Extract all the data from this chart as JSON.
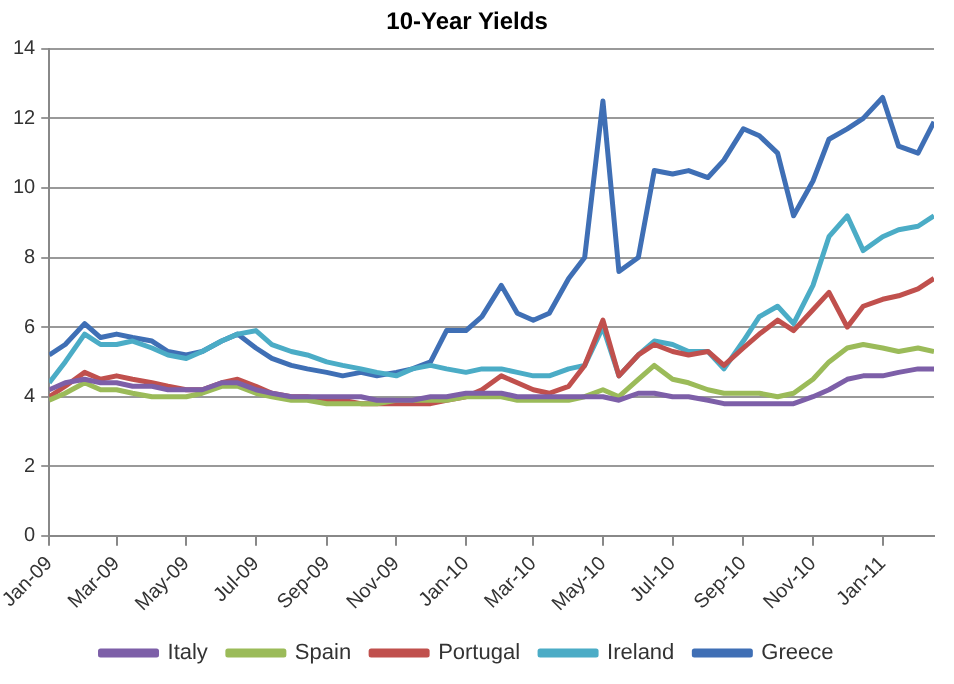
{
  "chart_data": {
    "type": "line",
    "title": "10-Year Yields",
    "x": [
      "2009-01-01",
      "2009-01-15",
      "2009-02-01",
      "2009-02-15",
      "2009-03-01",
      "2009-03-15",
      "2009-04-01",
      "2009-04-15",
      "2009-05-01",
      "2009-05-15",
      "2009-06-01",
      "2009-06-15",
      "2009-07-01",
      "2009-07-15",
      "2009-08-01",
      "2009-08-15",
      "2009-09-01",
      "2009-09-15",
      "2009-10-01",
      "2009-10-15",
      "2009-11-01",
      "2009-11-15",
      "2009-12-01",
      "2009-12-15",
      "2010-01-01",
      "2010-01-15",
      "2010-02-01",
      "2010-02-15",
      "2010-03-01",
      "2010-03-15",
      "2010-04-01",
      "2010-04-15",
      "2010-05-01",
      "2010-05-15",
      "2010-06-01",
      "2010-06-15",
      "2010-07-01",
      "2010-07-15",
      "2010-08-01",
      "2010-08-15",
      "2010-09-01",
      "2010-09-15",
      "2010-10-01",
      "2010-10-15",
      "2010-11-01",
      "2010-11-15",
      "2010-12-01",
      "2010-12-15",
      "2011-01-01",
      "2011-01-15",
      "2011-02-01",
      "2011-02-15"
    ],
    "series": [
      {
        "name": "Italy",
        "color": "#7d5fa8",
        "values": [
          4.2,
          4.4,
          4.5,
          4.4,
          4.4,
          4.3,
          4.3,
          4.2,
          4.2,
          4.2,
          4.4,
          4.4,
          4.2,
          4.1,
          4.0,
          4.0,
          4.0,
          4.0,
          4.0,
          3.9,
          3.9,
          3.9,
          4.0,
          4.0,
          4.1,
          4.1,
          4.1,
          4.0,
          4.0,
          4.0,
          4.0,
          4.0,
          4.0,
          3.9,
          4.1,
          4.1,
          4.0,
          4.0,
          3.9,
          3.8,
          3.8,
          3.8,
          3.8,
          3.8,
          4.0,
          4.2,
          4.5,
          4.6,
          4.6,
          4.7,
          4.8,
          4.8
        ]
      },
      {
        "name": "Spain",
        "color": "#9bbb59",
        "values": [
          3.9,
          4.1,
          4.4,
          4.2,
          4.2,
          4.1,
          4.0,
          4.0,
          4.0,
          4.1,
          4.3,
          4.3,
          4.1,
          4.0,
          3.9,
          3.9,
          3.8,
          3.8,
          3.8,
          3.8,
          3.9,
          3.9,
          3.9,
          3.9,
          4.0,
          4.0,
          4.0,
          3.9,
          3.9,
          3.9,
          3.9,
          4.0,
          4.2,
          4.0,
          4.5,
          4.9,
          4.5,
          4.4,
          4.2,
          4.1,
          4.1,
          4.1,
          4.0,
          4.1,
          4.5,
          5.0,
          5.4,
          5.5,
          5.4,
          5.3,
          5.4,
          5.3
        ]
      },
      {
        "name": "Portugal",
        "color": "#c0504d",
        "values": [
          4.0,
          4.3,
          4.7,
          4.5,
          4.6,
          4.5,
          4.4,
          4.3,
          4.2,
          4.2,
          4.4,
          4.5,
          4.3,
          4.1,
          4.0,
          4.0,
          3.9,
          3.9,
          3.8,
          3.8,
          3.8,
          3.8,
          3.8,
          3.9,
          4.0,
          4.2,
          4.6,
          4.4,
          4.2,
          4.1,
          4.3,
          4.9,
          6.2,
          4.6,
          5.2,
          5.5,
          5.3,
          5.2,
          5.3,
          4.9,
          5.4,
          5.8,
          6.2,
          5.9,
          6.5,
          7.0,
          6.0,
          6.6,
          6.8,
          6.9,
          7.1,
          7.4
        ]
      },
      {
        "name": "Ireland",
        "color": "#4bacc6",
        "values": [
          4.4,
          5.0,
          5.8,
          5.5,
          5.5,
          5.6,
          5.4,
          5.2,
          5.1,
          5.3,
          5.6,
          5.8,
          5.9,
          5.5,
          5.3,
          5.2,
          5.0,
          4.9,
          4.8,
          4.7,
          4.6,
          4.8,
          4.9,
          4.8,
          4.7,
          4.8,
          4.8,
          4.7,
          4.6,
          4.6,
          4.8,
          4.9,
          6.0,
          4.6,
          5.2,
          5.6,
          5.5,
          5.3,
          5.3,
          4.8,
          5.6,
          6.3,
          6.6,
          6.1,
          7.2,
          8.6,
          9.2,
          8.2,
          8.6,
          8.8,
          8.9,
          9.2
        ]
      },
      {
        "name": "Greece",
        "color": "#3f6fb5",
        "values": [
          5.2,
          5.5,
          6.1,
          5.7,
          5.8,
          5.7,
          5.6,
          5.3,
          5.2,
          5.3,
          5.6,
          5.8,
          5.4,
          5.1,
          4.9,
          4.8,
          4.7,
          4.6,
          4.7,
          4.6,
          4.7,
          4.8,
          5.0,
          5.9,
          5.9,
          6.3,
          7.2,
          6.4,
          6.2,
          6.4,
          7.4,
          8.0,
          12.5,
          7.6,
          8.0,
          10.5,
          10.4,
          10.5,
          10.3,
          10.8,
          11.7,
          11.5,
          11.0,
          9.2,
          10.2,
          11.4,
          11.7,
          12.0,
          12.6,
          11.2,
          11.0,
          11.9
        ]
      }
    ],
    "xlim": [
      "2009-01-01",
      "2011-02-15"
    ],
    "xticks": [
      {
        "value": "2009-01-01",
        "label": "Jan-09"
      },
      {
        "value": "2009-03-01",
        "label": "Mar-09"
      },
      {
        "value": "2009-05-01",
        "label": "May-09"
      },
      {
        "value": "2009-07-01",
        "label": "Jul-09"
      },
      {
        "value": "2009-09-01",
        "label": "Sep-09"
      },
      {
        "value": "2009-11-01",
        "label": "Nov-09"
      },
      {
        "value": "2010-01-01",
        "label": "Jan-10"
      },
      {
        "value": "2010-03-01",
        "label": "Mar-10"
      },
      {
        "value": "2010-05-01",
        "label": "May-10"
      },
      {
        "value": "2010-07-01",
        "label": "Jul-10"
      },
      {
        "value": "2010-09-01",
        "label": "Sep-10"
      },
      {
        "value": "2010-11-01",
        "label": "Nov-10"
      },
      {
        "value": "2011-01-01",
        "label": "Jan-11"
      }
    ],
    "ylim": [
      0,
      14
    ],
    "yticks": [
      0,
      2,
      4,
      6,
      8,
      10,
      12,
      14
    ],
    "grid": "y",
    "legend": "bottom",
    "marker": "none",
    "line_style": "solid"
  }
}
